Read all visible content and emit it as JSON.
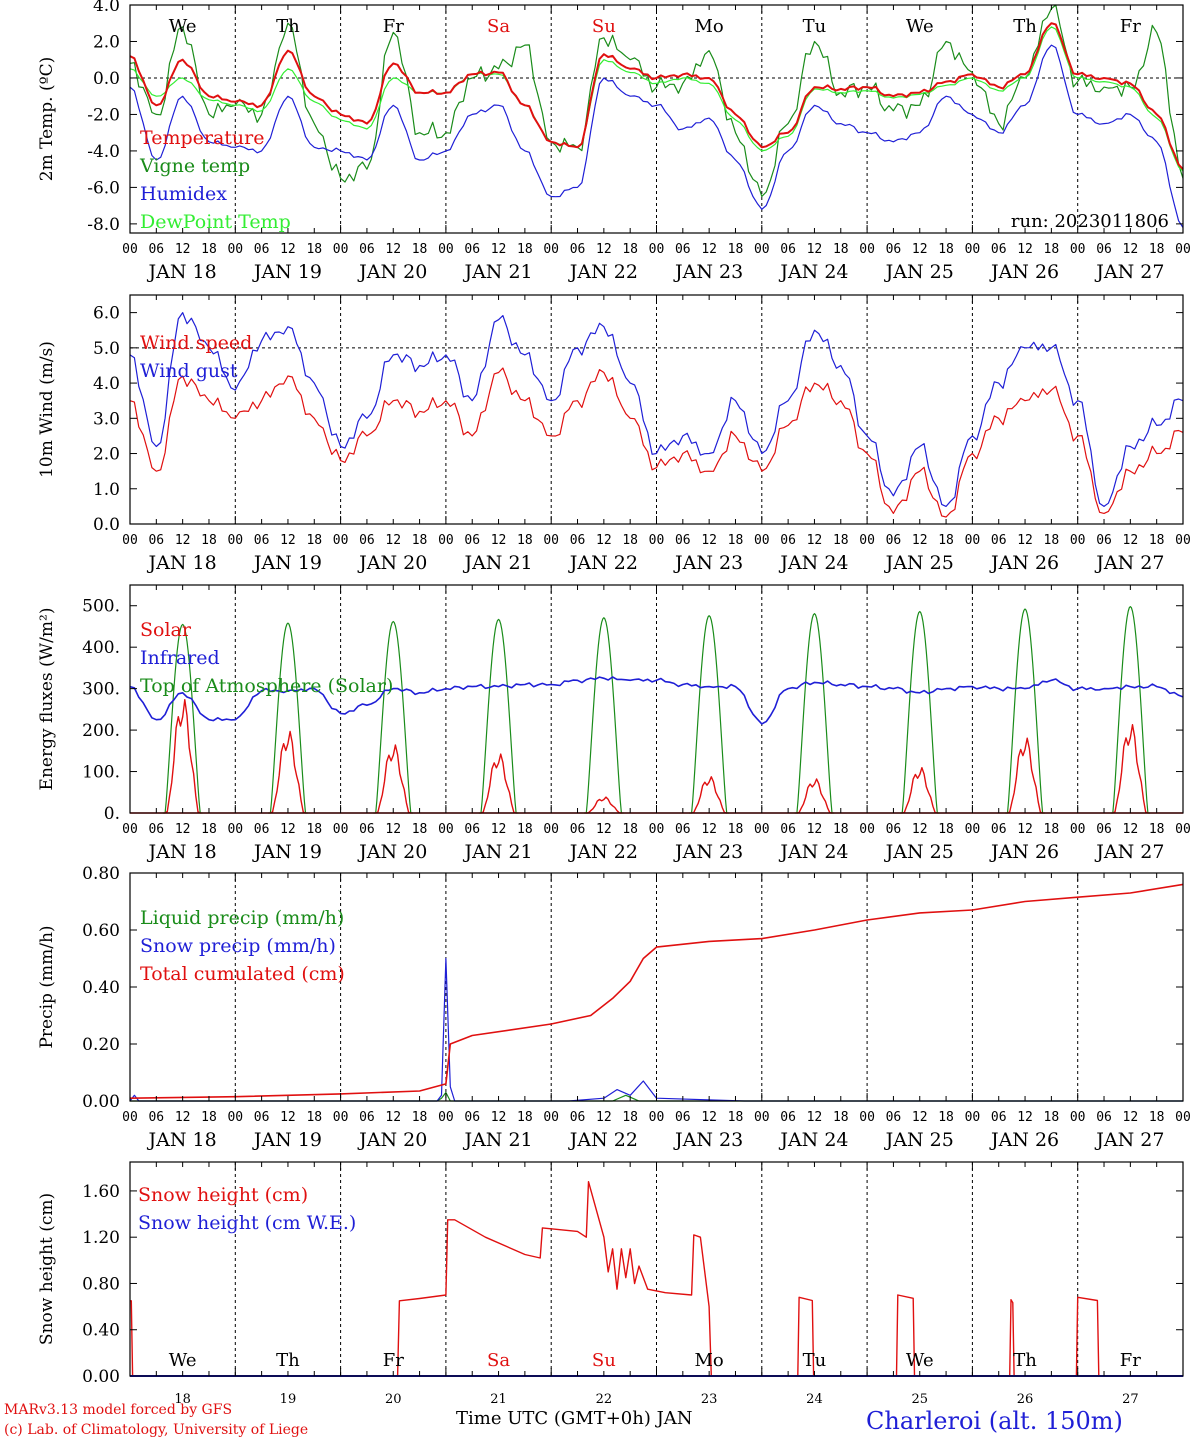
{
  "colors": {
    "red": "#e01010",
    "green": "#1a8c1a",
    "blue": "#1f1fd6",
    "lightgreen": "#33ee33",
    "black": "#000000"
  },
  "days": [
    "We",
    "Th",
    "Fr",
    "Sa",
    "Su",
    "Mo",
    "Tu",
    "We",
    "Th",
    "Fr"
  ],
  "weekend_color_days": [
    3,
    4
  ],
  "date_labels": [
    "JAN 18",
    "JAN 19",
    "JAN 20",
    "JAN 21",
    "JAN 22",
    "JAN 23",
    "JAN 24",
    "JAN 25",
    "JAN 26",
    "JAN 27"
  ],
  "hour_ticks": [
    "00",
    "06",
    "12",
    "18"
  ],
  "hour_end": "00",
  "bottom_day_numbers": [
    "18",
    "19",
    "20",
    "21",
    "22",
    "23",
    "24",
    "25",
    "26",
    "27"
  ],
  "footer": {
    "model": "MARv3.13 model forced by GFS",
    "credit": "(c) Lab. of Climatology, University of Liege",
    "xaxis_title": "Time UTC (GMT+0h) JAN",
    "station": "Charleroi (alt. 150m)"
  },
  "chart_data": [
    {
      "id": "temp",
      "type": "line",
      "ylabel": "2m Temp. (ºC)",
      "ylim": [
        -8.5,
        4.0
      ],
      "yticks": [
        "4.0",
        "2.0",
        "0.0",
        "-2.0",
        "-4.0",
        "-6.0",
        "-8.0"
      ],
      "ytick_values": [
        4,
        2,
        0,
        -2,
        -4,
        -6,
        -8
      ],
      "ref_line": 0,
      "run_label": "run: 2023011806",
      "x_hours": [
        0,
        6,
        12,
        18,
        24,
        30,
        36,
        42,
        48,
        54,
        60,
        66,
        72,
        78,
        84,
        90,
        96,
        102,
        108,
        114,
        120,
        126,
        132,
        138,
        144,
        150,
        156,
        162,
        168,
        174,
        180,
        186,
        192,
        198,
        204,
        210,
        216,
        222,
        228,
        234,
        240
      ],
      "series": [
        {
          "name": "Temperature",
          "color": "red",
          "values": [
            1.2,
            -1.5,
            1.0,
            -1.0,
            -1.3,
            -1.5,
            1.5,
            -1.0,
            -2.0,
            -2.5,
            0.8,
            -0.8,
            -0.8,
            0.2,
            0.3,
            -1.5,
            -3.5,
            -3.8,
            1.3,
            0.5,
            0.0,
            0.2,
            0.0,
            -2.0,
            -3.8,
            -3.0,
            -0.5,
            -0.6,
            -0.5,
            -1.0,
            -0.8,
            -0.2,
            0.2,
            -0.5,
            0.2,
            3.0,
            0.2,
            0.0,
            -0.3,
            -2.0,
            -5.0
          ]
        },
        {
          "name": "Vigne temp",
          "color": "green",
          "values": [
            0.8,
            -2.0,
            2.8,
            -2.0,
            -1.5,
            -2.0,
            3.0,
            -2.5,
            -5.5,
            -5.0,
            2.5,
            -3.0,
            -3.0,
            0.0,
            0.5,
            1.8,
            -3.5,
            -3.8,
            2.2,
            1.0,
            -0.5,
            -0.3,
            1.5,
            -3.0,
            -6.5,
            -2.5,
            2.0,
            -0.8,
            -0.5,
            -1.8,
            -1.5,
            2.0,
            0.3,
            -2.5,
            0.0,
            3.8,
            -0.2,
            -0.5,
            -0.5,
            2.5,
            -5.5
          ]
        },
        {
          "name": "Humidex",
          "color": "blue",
          "values": [
            -0.5,
            -4.5,
            -1.0,
            -3.5,
            -3.8,
            -4.0,
            -1.0,
            -3.8,
            -4.0,
            -4.5,
            -1.5,
            -4.5,
            -4.0,
            -2.0,
            -1.5,
            -4.0,
            -6.5,
            -6.0,
            0.0,
            -1.0,
            -1.5,
            -2.8,
            -2.2,
            -4.5,
            -7.2,
            -4.0,
            -1.5,
            -2.5,
            -3.0,
            -3.5,
            -3.0,
            -1.0,
            -2.0,
            -3.0,
            -1.5,
            1.8,
            -2.0,
            -2.5,
            -2.0,
            -3.5,
            -8.2
          ]
        },
        {
          "name": "DewPoint Temp",
          "color": "lightgreen",
          "values": [
            0.5,
            -1.0,
            0.0,
            -1.2,
            -1.5,
            -1.8,
            0.5,
            -1.3,
            -2.3,
            -2.8,
            0.0,
            -0.8,
            -0.8,
            0.2,
            0.2,
            -1.5,
            -3.5,
            -3.8,
            1.0,
            0.3,
            -0.3,
            0.0,
            -0.3,
            -2.3,
            -4.0,
            -3.2,
            -0.6,
            -0.8,
            -0.7,
            -1.1,
            -0.9,
            -0.4,
            0.0,
            -0.7,
            0.0,
            2.8,
            0.0,
            -0.2,
            -0.5,
            -2.2,
            -5.1
          ]
        }
      ]
    },
    {
      "id": "wind",
      "type": "line",
      "ylabel": "10m Wind (m/s)",
      "ylim": [
        0.0,
        6.5
      ],
      "yticks": [
        "6.0",
        "5.0",
        "4.0",
        "3.0",
        "2.0",
        "1.0",
        "0.0"
      ],
      "ytick_values": [
        6,
        5,
        4,
        3,
        2,
        1,
        0
      ],
      "ref_line": 5,
      "x_hours": [
        0,
        6,
        12,
        18,
        24,
        30,
        36,
        42,
        48,
        54,
        60,
        66,
        72,
        78,
        84,
        90,
        96,
        102,
        108,
        114,
        120,
        126,
        132,
        138,
        144,
        150,
        156,
        162,
        168,
        174,
        180,
        186,
        192,
        198,
        204,
        210,
        216,
        222,
        228,
        234,
        240
      ],
      "series": [
        {
          "name": "Wind speed",
          "color": "red",
          "values": [
            3.5,
            1.5,
            4.2,
            3.5,
            3.0,
            3.5,
            4.2,
            3.0,
            1.8,
            2.5,
            3.5,
            3.2,
            3.5,
            2.5,
            4.3,
            3.5,
            2.5,
            3.5,
            4.3,
            3.0,
            1.6,
            2.0,
            1.5,
            2.5,
            1.5,
            2.8,
            4.0,
            3.5,
            2.0,
            0.3,
            1.5,
            0.2,
            2.0,
            3.0,
            3.5,
            3.8,
            2.5,
            0.3,
            1.5,
            2.0,
            2.6
          ]
        },
        {
          "name": "Wind gust",
          "color": "blue",
          "values": [
            4.8,
            2.2,
            6.0,
            5.0,
            3.8,
            5.2,
            5.6,
            4.0,
            2.2,
            3.0,
            4.8,
            4.5,
            4.8,
            3.5,
            5.8,
            4.8,
            3.5,
            5.0,
            5.6,
            4.0,
            2.0,
            2.5,
            2.0,
            3.5,
            2.0,
            3.5,
            5.5,
            4.5,
            2.5,
            0.8,
            2.2,
            0.5,
            2.5,
            4.0,
            5.0,
            5.0,
            3.5,
            0.5,
            2.2,
            2.8,
            3.5
          ]
        }
      ]
    },
    {
      "id": "energy",
      "type": "line",
      "ylabel": "Energy fluxes (W/m²)",
      "ylim": [
        0,
        550
      ],
      "yticks": [
        "500.",
        "400.",
        "300.",
        "200.",
        "100.",
        "0."
      ],
      "ytick_values": [
        500,
        400,
        300,
        200,
        100,
        0
      ],
      "infrared_hours": [
        0,
        6,
        12,
        18,
        24,
        30,
        36,
        42,
        48,
        54,
        60,
        66,
        72,
        78,
        84,
        90,
        96,
        102,
        108,
        114,
        120,
        126,
        132,
        138,
        144,
        150,
        156,
        162,
        168,
        174,
        180,
        186,
        192,
        198,
        204,
        210,
        216,
        222,
        228,
        234,
        240
      ],
      "infrared_values": [
        305,
        225,
        290,
        225,
        225,
        295,
        295,
        300,
        240,
        260,
        300,
        290,
        300,
        305,
        305,
        310,
        310,
        320,
        325,
        320,
        320,
        310,
        305,
        305,
        215,
        300,
        315,
        310,
        305,
        300,
        290,
        300,
        305,
        300,
        300,
        320,
        300,
        300,
        305,
        305,
        280
      ],
      "solar_peaks": [
        250,
        180,
        150,
        130,
        35,
        80,
        75,
        100,
        165,
        195
      ],
      "toa_peaks": [
        455,
        458,
        462,
        467,
        471,
        476,
        481,
        486,
        492,
        498
      ],
      "series": [
        {
          "name": "Solar",
          "color": "red"
        },
        {
          "name": "Infrared",
          "color": "blue"
        },
        {
          "name": "Top of Atmosphere (Solar)",
          "color": "green"
        }
      ]
    },
    {
      "id": "precip",
      "type": "line",
      "ylabel": "Precip (mm/h)",
      "ylim": [
        0.0,
        0.8
      ],
      "yticks": [
        "0.80",
        "0.60",
        "0.40",
        "0.20",
        "0.00"
      ],
      "ytick_values": [
        0.8,
        0.6,
        0.4,
        0.2,
        0.0
      ],
      "series": [
        {
          "name": "Liquid precip (mm/h)",
          "color": "green",
          "x": [
            0,
            70,
            71,
            72,
            73,
            74,
            110,
            113,
            116,
            240
          ],
          "values": [
            0.0,
            0.0,
            0.01,
            0.03,
            0.0,
            0.0,
            0.0,
            0.02,
            0.0,
            0.0
          ]
        },
        {
          "name": "Snow precip (mm/h)",
          "color": "blue",
          "x": [
            0,
            1,
            2,
            70,
            71,
            72,
            73,
            74,
            100,
            108,
            111,
            114,
            117,
            120,
            140,
            200,
            240
          ],
          "values": [
            0.0,
            0.02,
            0.0,
            0.0,
            0.02,
            0.5,
            0.05,
            0.0,
            0.0,
            0.01,
            0.04,
            0.02,
            0.07,
            0.01,
            0.0,
            0.0,
            0.0
          ]
        },
        {
          "name": "Total cumulated (cm)",
          "color": "red",
          "x": [
            0,
            24,
            48,
            66,
            72,
            73,
            78,
            96,
            105,
            110,
            114,
            117,
            120,
            132,
            144,
            156,
            168,
            180,
            192,
            204,
            216,
            228,
            240
          ],
          "values": [
            0.01,
            0.015,
            0.025,
            0.035,
            0.06,
            0.2,
            0.23,
            0.27,
            0.3,
            0.36,
            0.42,
            0.5,
            0.54,
            0.56,
            0.57,
            0.6,
            0.635,
            0.66,
            0.67,
            0.7,
            0.715,
            0.73,
            0.76
          ]
        }
      ]
    },
    {
      "id": "snow",
      "type": "line",
      "ylabel": "Snow height (cm)",
      "ylim": [
        0.0,
        1.85
      ],
      "yticks": [
        "1.60",
        "1.20",
        "0.80",
        "0.40",
        "0.00"
      ],
      "ytick_values": [
        1.6,
        1.2,
        0.8,
        0.4,
        0.0
      ],
      "series": [
        {
          "name": "Snow height (cm)",
          "color": "red",
          "x": [
            0,
            0.3,
            0.6,
            61,
            61.4,
            66,
            72,
            72.4,
            74,
            81,
            90,
            93.5,
            94,
            102,
            104,
            104.5,
            108,
            109,
            110,
            111,
            112,
            113,
            114,
            115,
            116,
            118,
            122,
            128,
            128.5,
            130,
            132,
            132.5,
            240
          ],
          "values": [
            0.65,
            0.65,
            0.0,
            0.0,
            0.65,
            0.67,
            0.7,
            1.35,
            1.35,
            1.2,
            1.05,
            1.02,
            1.28,
            1.25,
            1.2,
            1.68,
            1.2,
            0.9,
            1.1,
            0.75,
            1.1,
            0.85,
            1.1,
            0.8,
            0.95,
            0.75,
            0.72,
            0.7,
            1.22,
            1.2,
            0.6,
            0.0,
            0.0
          ]
        },
        {
          "name": "Snow height (cm W.E.)",
          "color": "blue",
          "x": [
            0,
            240
          ],
          "values": [
            0.0,
            0.0
          ]
        }
      ],
      "snow_bumps": [
        [
          152.5,
          155.5,
          0.68
        ],
        [
          175,
          178.5,
          0.7
        ],
        [
          200.8,
          201.2,
          0.66
        ],
        [
          216,
          220.5,
          0.68
        ]
      ]
    }
  ]
}
